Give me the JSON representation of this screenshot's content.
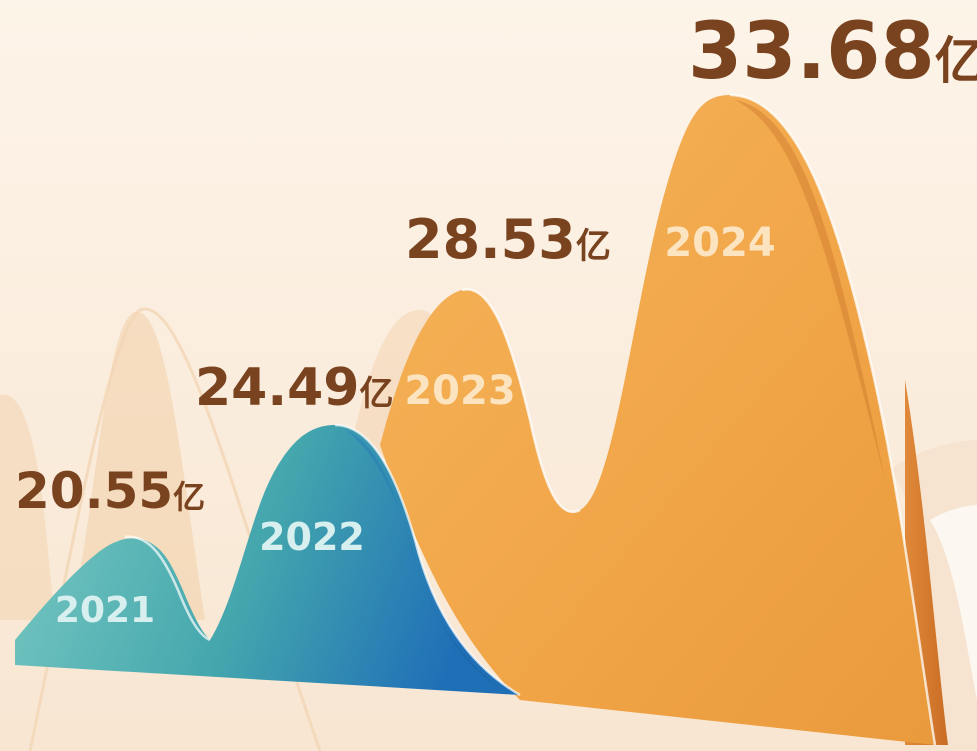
{
  "chart_data": {
    "type": "area",
    "title": "",
    "xlabel": "",
    "ylabel": "",
    "unit": "亿",
    "categories": [
      "2021",
      "2022",
      "2023",
      "2024"
    ],
    "values": [
      20.55,
      24.49,
      28.53,
      33.68
    ],
    "value_labels": [
      "20.55",
      "24.49",
      "28.53",
      "33.68"
    ],
    "ylim": [
      0,
      35
    ],
    "grid": false,
    "legend": "none",
    "colors": {
      "teal_light": "#7cc8c2",
      "teal": "#44a7ad",
      "blue": "#1f72b8",
      "orange": "#f0a446",
      "orange_dark": "#d4792b",
      "label": "#7a4320",
      "background": "#fbefe2"
    }
  }
}
